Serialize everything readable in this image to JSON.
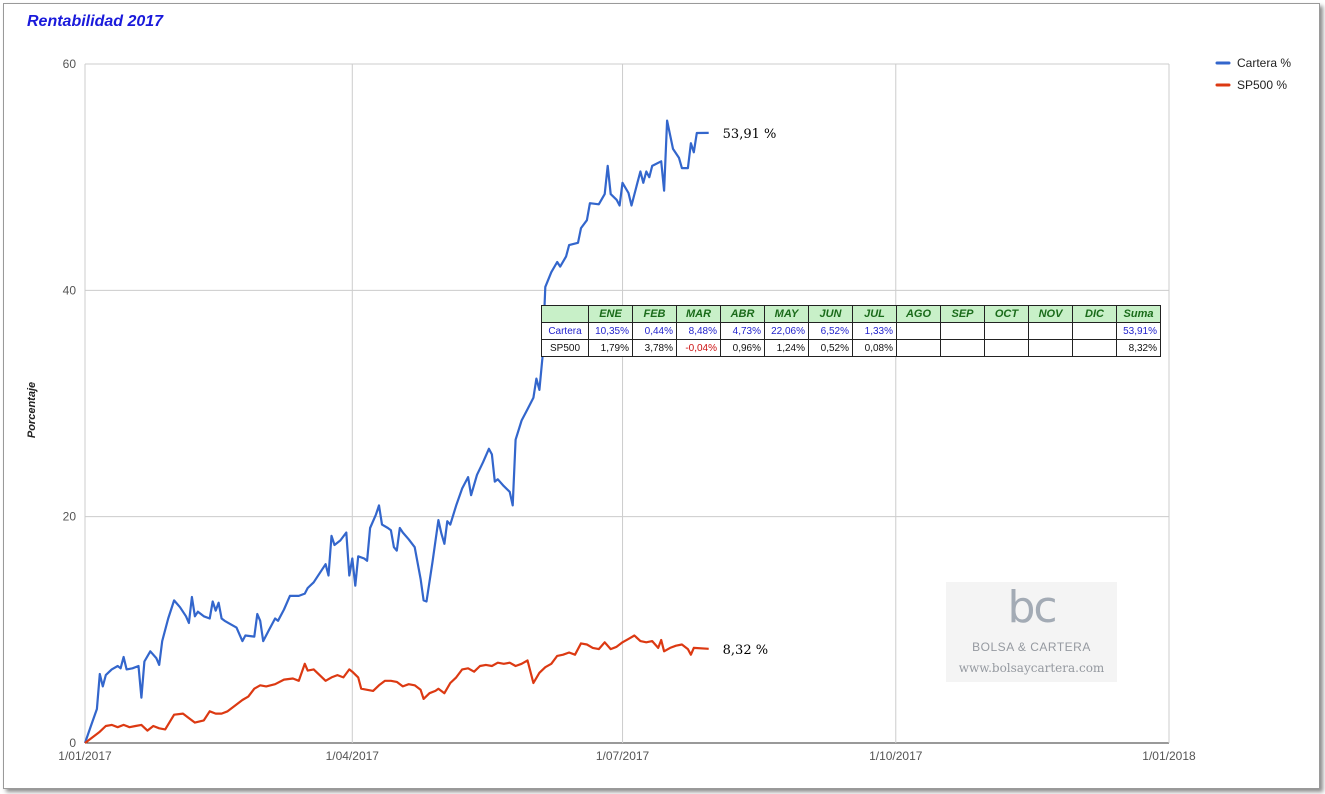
{
  "chart_data": {
    "type": "line",
    "title": "Rentabilidad 2017",
    "ylabel": "Porcentaje",
    "xlabel": "",
    "ylim": [
      0,
      60
    ],
    "y_ticks": [
      "0",
      "20",
      "40",
      "60"
    ],
    "xlim": [
      "2017-01-01",
      "2018-01-01"
    ],
    "x_ticks": [
      {
        "date": "2017-01-01",
        "label": "1/01/2017"
      },
      {
        "date": "2017-04-01",
        "label": "1/04/2017"
      },
      {
        "date": "2017-07-01",
        "label": "1/07/2017"
      },
      {
        "date": "2017-10-01",
        "label": "1/10/2017"
      },
      {
        "date": "2018-01-01",
        "label": "1/01/2018"
      }
    ],
    "grid": true,
    "legend_position": "top-right",
    "series": [
      {
        "name": "Cartera %",
        "color": "#3366cc",
        "end_label": "53,91 %",
        "points": [
          [
            "2017-01-01",
            0
          ],
          [
            "2017-01-03",
            1.5
          ],
          [
            "2017-01-05",
            3
          ],
          [
            "2017-01-06",
            6.1
          ],
          [
            "2017-01-07",
            5
          ],
          [
            "2017-01-08",
            6
          ],
          [
            "2017-01-10",
            6.5
          ],
          [
            "2017-01-12",
            6.8
          ],
          [
            "2017-01-13",
            6.6
          ],
          [
            "2017-01-14",
            7.6
          ],
          [
            "2017-01-15",
            6.5
          ],
          [
            "2017-01-17",
            6.6
          ],
          [
            "2017-01-19",
            6.8
          ],
          [
            "2017-01-20",
            4
          ],
          [
            "2017-01-21",
            7.2
          ],
          [
            "2017-01-23",
            8.1
          ],
          [
            "2017-01-25",
            7.5
          ],
          [
            "2017-01-26",
            6.9
          ],
          [
            "2017-01-27",
            9
          ],
          [
            "2017-01-29",
            11
          ],
          [
            "2017-01-31",
            12.6
          ],
          [
            "2017-02-02",
            12
          ],
          [
            "2017-02-04",
            11.2
          ],
          [
            "2017-02-05",
            10.6
          ],
          [
            "2017-02-06",
            12.9
          ],
          [
            "2017-02-07",
            11.2
          ],
          [
            "2017-02-08",
            11.6
          ],
          [
            "2017-02-10",
            11.2
          ],
          [
            "2017-02-12",
            11
          ],
          [
            "2017-02-13",
            12.5
          ],
          [
            "2017-02-14",
            11.7
          ],
          [
            "2017-02-15",
            12.4
          ],
          [
            "2017-02-16",
            11
          ],
          [
            "2017-02-17",
            10.8
          ],
          [
            "2017-02-19",
            10.5
          ],
          [
            "2017-02-21",
            10.2
          ],
          [
            "2017-02-23",
            9
          ],
          [
            "2017-02-24",
            9.5
          ],
          [
            "2017-02-27",
            9.4
          ],
          [
            "2017-02-28",
            11.4
          ],
          [
            "2017-03-01",
            10.8
          ],
          [
            "2017-03-02",
            9
          ],
          [
            "2017-03-04",
            10
          ],
          [
            "2017-03-06",
            11
          ],
          [
            "2017-03-07",
            10.8
          ],
          [
            "2017-03-09",
            11.8
          ],
          [
            "2017-03-11",
            13
          ],
          [
            "2017-03-14",
            13
          ],
          [
            "2017-03-16",
            13.2
          ],
          [
            "2017-03-17",
            13.7
          ],
          [
            "2017-03-19",
            14.2
          ],
          [
            "2017-03-21",
            15
          ],
          [
            "2017-03-23",
            15.8
          ],
          [
            "2017-03-24",
            14.8
          ],
          [
            "2017-03-25",
            18.3
          ],
          [
            "2017-03-26",
            17.5
          ],
          [
            "2017-03-28",
            17.9
          ],
          [
            "2017-03-30",
            18.6
          ],
          [
            "2017-03-31",
            14.8
          ],
          [
            "2017-04-01",
            16.3
          ],
          [
            "2017-04-02",
            13.9
          ],
          [
            "2017-04-03",
            16.5
          ],
          [
            "2017-04-05",
            16.3
          ],
          [
            "2017-04-06",
            16.1
          ],
          [
            "2017-04-07",
            19
          ],
          [
            "2017-04-09",
            20.2
          ],
          [
            "2017-04-10",
            21
          ],
          [
            "2017-04-11",
            19.3
          ],
          [
            "2017-04-13",
            19
          ],
          [
            "2017-04-14",
            18.8
          ],
          [
            "2017-04-15",
            17.3
          ],
          [
            "2017-04-16",
            17
          ],
          [
            "2017-04-17",
            19
          ],
          [
            "2017-04-18",
            18.6
          ],
          [
            "2017-04-20",
            18
          ],
          [
            "2017-04-22",
            17.3
          ],
          [
            "2017-04-24",
            14.5
          ],
          [
            "2017-04-25",
            12.6
          ],
          [
            "2017-04-26",
            12.5
          ],
          [
            "2017-04-28",
            16
          ],
          [
            "2017-04-30",
            19.7
          ],
          [
            "2017-05-01",
            18.5
          ],
          [
            "2017-05-02",
            17.6
          ],
          [
            "2017-05-03",
            19.6
          ],
          [
            "2017-05-04",
            19.3
          ],
          [
            "2017-05-06",
            21
          ],
          [
            "2017-05-08",
            22.5
          ],
          [
            "2017-05-10",
            23.5
          ],
          [
            "2017-05-11",
            21.9
          ],
          [
            "2017-05-13",
            23.7
          ],
          [
            "2017-05-15",
            24.8
          ],
          [
            "2017-05-17",
            26
          ],
          [
            "2017-05-18",
            25.5
          ],
          [
            "2017-05-19",
            23.1
          ],
          [
            "2017-05-20",
            23.3
          ],
          [
            "2017-05-22",
            22.7
          ],
          [
            "2017-05-24",
            22.2
          ],
          [
            "2017-05-25",
            21
          ],
          [
            "2017-05-26",
            26.8
          ],
          [
            "2017-05-28",
            28.5
          ],
          [
            "2017-05-30",
            29.5
          ],
          [
            "2017-06-01",
            30.5
          ],
          [
            "2017-06-02",
            32.2
          ],
          [
            "2017-06-03",
            31.2
          ],
          [
            "2017-06-04",
            34
          ],
          [
            "2017-06-05",
            40.3
          ],
          [
            "2017-06-07",
            41.6
          ],
          [
            "2017-06-09",
            42.5
          ],
          [
            "2017-06-10",
            42.1
          ],
          [
            "2017-06-12",
            43
          ],
          [
            "2017-06-13",
            44
          ],
          [
            "2017-06-16",
            44.2
          ],
          [
            "2017-06-17",
            45.5
          ],
          [
            "2017-06-19",
            46.2
          ],
          [
            "2017-06-20",
            47.7
          ],
          [
            "2017-06-23",
            47.6
          ],
          [
            "2017-06-25",
            48.5
          ],
          [
            "2017-06-26",
            51
          ],
          [
            "2017-06-27",
            48.5
          ],
          [
            "2017-06-29",
            48
          ],
          [
            "2017-06-30",
            47.5
          ],
          [
            "2017-07-01",
            49.5
          ],
          [
            "2017-07-03",
            48.6
          ],
          [
            "2017-07-04",
            47.5
          ],
          [
            "2017-07-06",
            49.5
          ],
          [
            "2017-07-07",
            50.5
          ],
          [
            "2017-07-08",
            49.5
          ],
          [
            "2017-07-09",
            50.5
          ],
          [
            "2017-07-10",
            50
          ],
          [
            "2017-07-11",
            51
          ],
          [
            "2017-07-14",
            51.4
          ],
          [
            "2017-07-15",
            48.8
          ],
          [
            "2017-07-16",
            55
          ],
          [
            "2017-07-18",
            52.5
          ],
          [
            "2017-07-20",
            51.7
          ],
          [
            "2017-07-21",
            50.8
          ],
          [
            "2017-07-23",
            50.8
          ],
          [
            "2017-07-24",
            53
          ],
          [
            "2017-07-25",
            52.2
          ],
          [
            "2017-07-26",
            53.9
          ],
          [
            "2017-07-30",
            53.91
          ]
        ]
      },
      {
        "name": "SP500 %",
        "color": "#dc3912",
        "end_label": "8,32 %",
        "points": [
          [
            "2017-01-01",
            0
          ],
          [
            "2017-01-04",
            0.6
          ],
          [
            "2017-01-06",
            1
          ],
          [
            "2017-01-08",
            1.5
          ],
          [
            "2017-01-10",
            1.6
          ],
          [
            "2017-01-12",
            1.4
          ],
          [
            "2017-01-14",
            1.6
          ],
          [
            "2017-01-16",
            1.4
          ],
          [
            "2017-01-18",
            1.5
          ],
          [
            "2017-01-20",
            1.6
          ],
          [
            "2017-01-22",
            1.1
          ],
          [
            "2017-01-24",
            1.5
          ],
          [
            "2017-01-26",
            1.3
          ],
          [
            "2017-01-28",
            1.2
          ],
          [
            "2017-01-31",
            2.5
          ],
          [
            "2017-02-03",
            2.6
          ],
          [
            "2017-02-05",
            2.2
          ],
          [
            "2017-02-07",
            1.8
          ],
          [
            "2017-02-10",
            2
          ],
          [
            "2017-02-12",
            2.8
          ],
          [
            "2017-02-14",
            2.6
          ],
          [
            "2017-02-16",
            2.6
          ],
          [
            "2017-02-18",
            2.8
          ],
          [
            "2017-02-21",
            3.4
          ],
          [
            "2017-02-23",
            3.8
          ],
          [
            "2017-02-25",
            4.1
          ],
          [
            "2017-02-27",
            4.8
          ],
          [
            "2017-03-01",
            5.1
          ],
          [
            "2017-03-03",
            5
          ],
          [
            "2017-03-06",
            5.2
          ],
          [
            "2017-03-09",
            5.6
          ],
          [
            "2017-03-12",
            5.7
          ],
          [
            "2017-03-14",
            5.5
          ],
          [
            "2017-03-16",
            7
          ],
          [
            "2017-03-17",
            6.4
          ],
          [
            "2017-03-19",
            6.5
          ],
          [
            "2017-03-21",
            6
          ],
          [
            "2017-03-23",
            5.5
          ],
          [
            "2017-03-25",
            5.8
          ],
          [
            "2017-03-27",
            6
          ],
          [
            "2017-03-29",
            5.8
          ],
          [
            "2017-03-31",
            6.5
          ],
          [
            "2017-04-01",
            6.3
          ],
          [
            "2017-04-03",
            5.8
          ],
          [
            "2017-04-04",
            4.8
          ],
          [
            "2017-04-06",
            4.7
          ],
          [
            "2017-04-08",
            4.6
          ],
          [
            "2017-04-10",
            5.1
          ],
          [
            "2017-04-12",
            5.5
          ],
          [
            "2017-04-14",
            5.5
          ],
          [
            "2017-04-16",
            5.4
          ],
          [
            "2017-04-18",
            5
          ],
          [
            "2017-04-20",
            5.2
          ],
          [
            "2017-04-22",
            5.1
          ],
          [
            "2017-04-24",
            4.7
          ],
          [
            "2017-04-25",
            3.9
          ],
          [
            "2017-04-27",
            4.4
          ],
          [
            "2017-04-29",
            4.6
          ],
          [
            "2017-04-30",
            4.8
          ],
          [
            "2017-05-02",
            4.4
          ],
          [
            "2017-05-04",
            5.3
          ],
          [
            "2017-05-06",
            5.8
          ],
          [
            "2017-05-08",
            6.5
          ],
          [
            "2017-05-10",
            6.6
          ],
          [
            "2017-05-12",
            6.3
          ],
          [
            "2017-05-14",
            6.8
          ],
          [
            "2017-05-16",
            6.9
          ],
          [
            "2017-05-18",
            6.8
          ],
          [
            "2017-05-20",
            7.1
          ],
          [
            "2017-05-22",
            7
          ],
          [
            "2017-05-24",
            7.1
          ],
          [
            "2017-05-26",
            6.8
          ],
          [
            "2017-05-28",
            7
          ],
          [
            "2017-05-30",
            7.3
          ],
          [
            "2017-06-01",
            5.3
          ],
          [
            "2017-06-03",
            6.2
          ],
          [
            "2017-06-05",
            6.7
          ],
          [
            "2017-06-07",
            7
          ],
          [
            "2017-06-09",
            7.7
          ],
          [
            "2017-06-11",
            7.8
          ],
          [
            "2017-06-13",
            8
          ],
          [
            "2017-06-15",
            7.8
          ],
          [
            "2017-06-17",
            8.8
          ],
          [
            "2017-06-19",
            8.7
          ],
          [
            "2017-06-21",
            8.4
          ],
          [
            "2017-06-23",
            8.3
          ],
          [
            "2017-06-25",
            8.9
          ],
          [
            "2017-06-27",
            8.3
          ],
          [
            "2017-06-29",
            8.5
          ],
          [
            "2017-07-01",
            8.9
          ],
          [
            "2017-07-03",
            9.2
          ],
          [
            "2017-07-05",
            9.5
          ],
          [
            "2017-07-07",
            9
          ],
          [
            "2017-07-09",
            8.9
          ],
          [
            "2017-07-11",
            9
          ],
          [
            "2017-07-13",
            8.4
          ],
          [
            "2017-07-14",
            9.1
          ],
          [
            "2017-07-15",
            8.1
          ],
          [
            "2017-07-17",
            8.4
          ],
          [
            "2017-07-19",
            8.6
          ],
          [
            "2017-07-21",
            8.7
          ],
          [
            "2017-07-23",
            8.3
          ],
          [
            "2017-07-24",
            7.8
          ],
          [
            "2017-07-25",
            8.4
          ],
          [
            "2017-07-30",
            8.32
          ]
        ]
      }
    ]
  },
  "table": {
    "headers": [
      "ENE",
      "FEB",
      "MAR",
      "ABR",
      "MAY",
      "JUN",
      "JUL",
      "AGO",
      "SEP",
      "OCT",
      "NOV",
      "DIC",
      "Suma"
    ],
    "rows": [
      {
        "name": "Cartera",
        "values": [
          "10,35%",
          "0,44%",
          "8,48%",
          "4,73%",
          "22,06%",
          "6,52%",
          "1,33%",
          "",
          "",
          "",
          "",
          "",
          "53,91%"
        ]
      },
      {
        "name": "SP500",
        "values": [
          "1,79%",
          "3,78%",
          "-0,04%",
          "0,96%",
          "1,24%",
          "0,52%",
          "0,08%",
          "",
          "",
          "",
          "",
          "",
          "8,32%"
        ]
      }
    ]
  },
  "watermark": {
    "logo": "bc",
    "name": "BOLSA & CARTERA",
    "url": "www.bolsaycartera.com"
  }
}
